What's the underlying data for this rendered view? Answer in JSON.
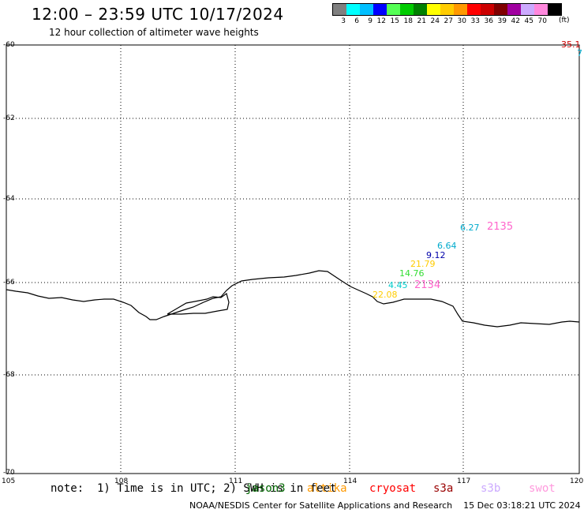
{
  "header": {
    "title": "12:00 – 23:59 UTC 10/17/2024",
    "subtitle": "12 hour collection of altimeter wave heights"
  },
  "legend": {
    "unit": "(ft)",
    "bins": [
      {
        "label": "3",
        "color": "#808080"
      },
      {
        "label": "6",
        "color": "#00ffff"
      },
      {
        "label": "9",
        "color": "#00bfff"
      },
      {
        "label": "12",
        "color": "#0000ff"
      },
      {
        "label": "15",
        "color": "#55ff55"
      },
      {
        "label": "18",
        "color": "#00cc00"
      },
      {
        "label": "21",
        "color": "#008000"
      },
      {
        "label": "24",
        "color": "#ffff00"
      },
      {
        "label": "27",
        "color": "#ffcc00"
      },
      {
        "label": "30",
        "color": "#ff9900"
      },
      {
        "label": "33",
        "color": "#ff0000"
      },
      {
        "label": "36",
        "color": "#cc0000"
      },
      {
        "label": "39",
        "color": "#800000"
      },
      {
        "label": "42",
        "color": "#a000a0"
      },
      {
        "label": "45",
        "color": "#ccaaff"
      },
      {
        "label": "70",
        "color": "#ff88dd"
      },
      {
        "label": "",
        "color": "#000000"
      }
    ]
  },
  "map": {
    "lat_labels": [
      "-60",
      "-62",
      "-64",
      "-66",
      "-68",
      "-70"
    ],
    "lon_labels": [
      "105",
      "108",
      "111",
      "114",
      "117",
      "120"
    ],
    "observations": [
      {
        "text": "35.1",
        "color": "#cc0000"
      },
      {
        "text": "7",
        "color": "#00aacc"
      },
      {
        "text": "6.27",
        "color": "#00aacc"
      },
      {
        "text": "2135",
        "color": "#ff66cc"
      },
      {
        "text": "6.64",
        "color": "#00aacc"
      },
      {
        "text": "9.12",
        "color": "#0000aa"
      },
      {
        "text": "21.79",
        "color": "#ffcc00"
      },
      {
        "text": "14.76",
        "color": "#33dd33"
      },
      {
        "text": "4.45",
        "color": "#00cccc"
      },
      {
        "text": "2134",
        "color": "#ff66cc"
      },
      {
        "text": "22.08",
        "color": "#ffcc00"
      }
    ]
  },
  "footer_bar": {
    "note": "note:  1) Time is in UTC; 2) SWH is in feet",
    "satellites": [
      {
        "name": "jason3",
        "color": "#006600"
      },
      {
        "name": "altika",
        "color": "#ff9900"
      },
      {
        "name": "cryosat",
        "color": "#ff0000"
      },
      {
        "name": "s3a",
        "color": "#990000"
      },
      {
        "name": "s3b",
        "color": "#ccaaff"
      },
      {
        "name": "swot",
        "color": "#ff99dd"
      }
    ],
    "credit": "NOAA/NESDIS Center for Satellite Applications and Research    15 Dec 03:18:21 UTC 2024"
  }
}
